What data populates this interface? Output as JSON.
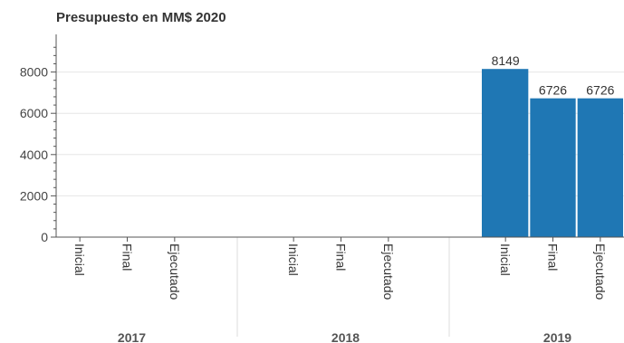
{
  "chart_data": {
    "type": "bar",
    "title": "Presupuesto en MM$ 2020",
    "xlabel": "",
    "ylabel": "",
    "ylim": [
      0,
      9400
    ],
    "yticks": [
      0,
      2000,
      4000,
      6000,
      8000
    ],
    "groups": [
      {
        "name": "2017",
        "categories": [
          "Inicial",
          "Final",
          "Ejecutado"
        ],
        "values": [
          0,
          0,
          0
        ],
        "labels": [
          "",
          "",
          ""
        ]
      },
      {
        "name": "2018",
        "categories": [
          "Inicial",
          "Final",
          "Ejecutado"
        ],
        "values": [
          0,
          0,
          0
        ],
        "labels": [
          "",
          "",
          ""
        ]
      },
      {
        "name": "2019",
        "categories": [
          "Inicial",
          "Final",
          "Ejecutado"
        ],
        "values": [
          8149,
          6726,
          6726
        ],
        "labels": [
          "8149",
          "6726",
          "6726"
        ]
      }
    ],
    "grid": true,
    "bar_color": "#1f77b4"
  }
}
